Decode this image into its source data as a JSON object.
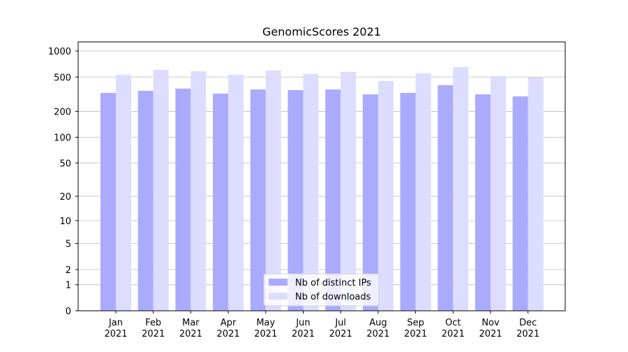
{
  "chart_data": {
    "type": "bar",
    "title": "GenomicScores 2021",
    "categories": [
      "Jan\n2021",
      "Feb\n2021",
      "Mar\n2021",
      "Apr\n2021",
      "May\n2021",
      "Jun\n2021",
      "Jul\n2021",
      "Aug\n2021",
      "Sep\n2021",
      "Oct\n2021",
      "Nov\n2021",
      "Dec\n2021"
    ],
    "series": [
      {
        "name": "Nb of distinct IPs",
        "color": "#aaaaff",
        "values": [
          327,
          346,
          367,
          321,
          359,
          353,
          359,
          315,
          327,
          402,
          315,
          298
        ]
      },
      {
        "name": "Nb of downloads",
        "color": "#ddddff",
        "values": [
          531,
          605,
          583,
          531,
          594,
          542,
          573,
          449,
          552,
          653,
          512,
          493
        ]
      }
    ],
    "yscale": "log1p",
    "ylim": [
      0,
      1273
    ],
    "yticks": [
      0,
      1,
      2,
      5,
      10,
      20,
      50,
      100,
      200,
      500,
      1000
    ],
    "grid": true,
    "legend": "lower center"
  }
}
